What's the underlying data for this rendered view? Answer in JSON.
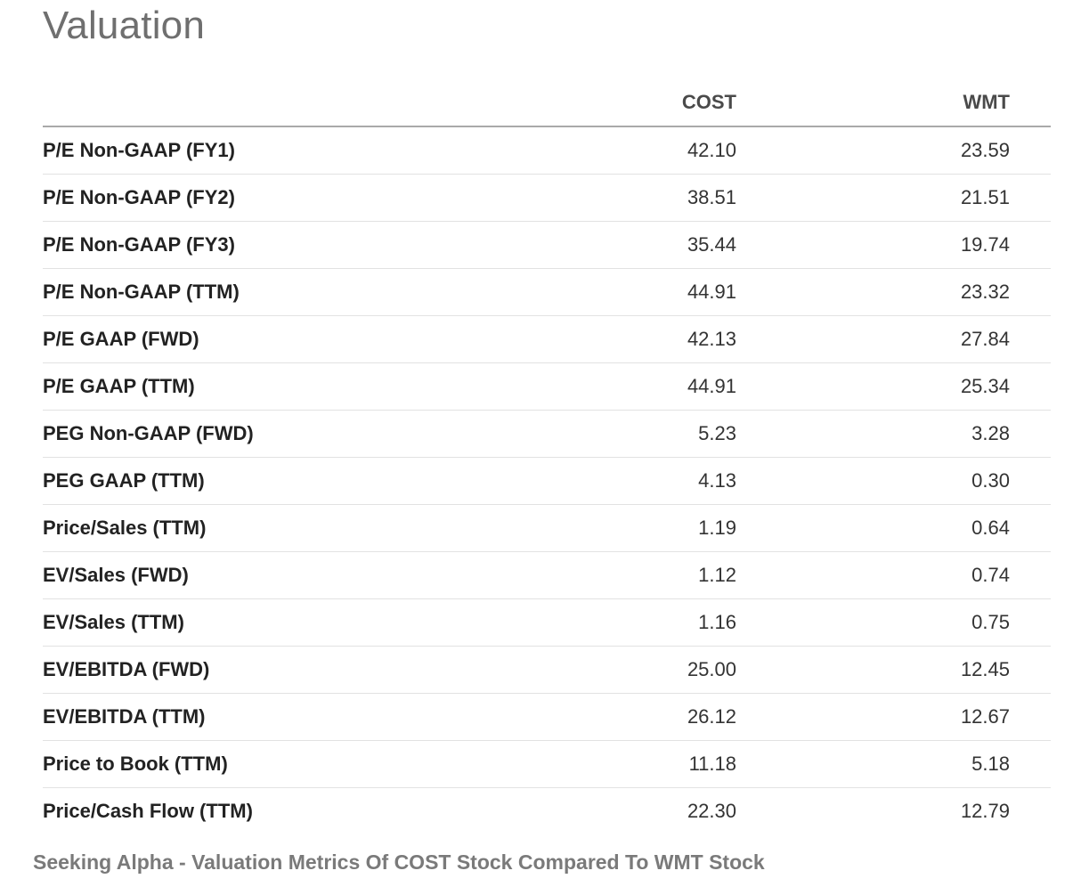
{
  "title": "Valuation",
  "columns": {
    "cost": "COST",
    "wmt": "WMT"
  },
  "rows": [
    {
      "label": "P/E Non-GAAP (FY1)",
      "cost": "42.10",
      "wmt": "23.59"
    },
    {
      "label": "P/E Non-GAAP (FY2)",
      "cost": "38.51",
      "wmt": "21.51"
    },
    {
      "label": "P/E Non-GAAP (FY3)",
      "cost": "35.44",
      "wmt": "19.74"
    },
    {
      "label": "P/E Non-GAAP (TTM)",
      "cost": "44.91",
      "wmt": "23.32"
    },
    {
      "label": "P/E GAAP (FWD)",
      "cost": "42.13",
      "wmt": "27.84"
    },
    {
      "label": "P/E GAAP (TTM)",
      "cost": "44.91",
      "wmt": "25.34"
    },
    {
      "label": "PEG Non-GAAP (FWD)",
      "cost": "5.23",
      "wmt": "3.28"
    },
    {
      "label": "PEG GAAP (TTM)",
      "cost": "4.13",
      "wmt": "0.30"
    },
    {
      "label": "Price/Sales (TTM)",
      "cost": "1.19",
      "wmt": "0.64"
    },
    {
      "label": "EV/Sales (FWD)",
      "cost": "1.12",
      "wmt": "0.74"
    },
    {
      "label": "EV/Sales (TTM)",
      "cost": "1.16",
      "wmt": "0.75"
    },
    {
      "label": "EV/EBITDA (FWD)",
      "cost": "25.00",
      "wmt": "12.45"
    },
    {
      "label": "EV/EBITDA (TTM)",
      "cost": "26.12",
      "wmt": "12.67"
    },
    {
      "label": "Price to Book (TTM)",
      "cost": "11.18",
      "wmt": "5.18"
    },
    {
      "label": "Price/Cash Flow (TTM)",
      "cost": "22.30",
      "wmt": "12.79"
    }
  ],
  "caption": "Seeking Alpha - Valuation Metrics Of COST Stock Compared To WMT Stock"
}
